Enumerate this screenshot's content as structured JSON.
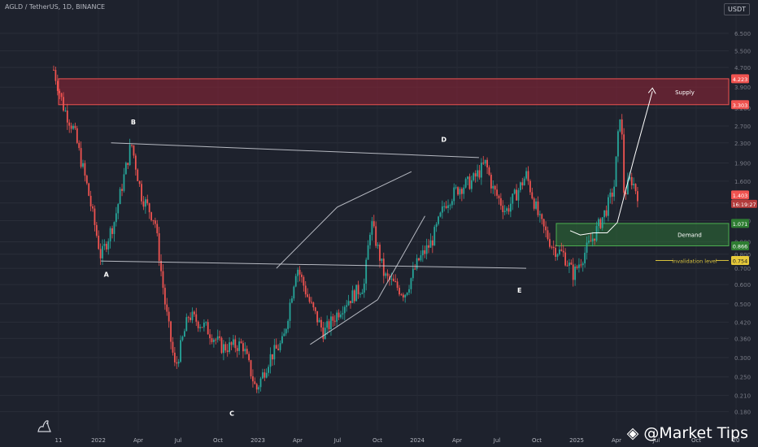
{
  "header": {
    "title": "AGLD / TetherUS, 1D, BINANCE",
    "currency": "USDT"
  },
  "watermark": "@Market Tips",
  "colors": {
    "background": "#1e222d",
    "up": "#26a69a",
    "down": "#ef5350",
    "supply_zone": "#8b2535",
    "demand_zone": "#2b6b35",
    "invalidation": "#d8c23c",
    "lines": "#d1d4dc"
  },
  "chart_data": {
    "type": "candlestick",
    "y_scale": "log",
    "ylim": [
      0.15,
      8.0
    ],
    "y_ticks": [
      6.5,
      5.5,
      4.7,
      3.9,
      3.2,
      2.7,
      2.3,
      1.9,
      1.6,
      1.3,
      1.1,
      0.9,
      0.8,
      0.7,
      0.6,
      0.5,
      0.42,
      0.36,
      0.3,
      0.25,
      0.21,
      0.18
    ],
    "y_tick_labels": [
      "6.500",
      "5.500",
      "4.700",
      "3.900",
      "3.200",
      "2.700",
      "2.300",
      "1.900",
      "1.600",
      "1.300",
      "1.100",
      "0.900",
      "0.800",
      "0.700",
      "0.600",
      "0.500",
      "0.420",
      "0.360",
      "0.300",
      "0.250",
      "0.210",
      "0.180"
    ],
    "x_ticks": [
      "11",
      "2022",
      "Apr",
      "Jul",
      "Oct",
      "2023",
      "Apr",
      "Jul",
      "Oct",
      "2024",
      "Apr",
      "Jul",
      "Oct",
      "2025",
      "Apr",
      "Jul",
      "Oct",
      "20"
    ],
    "price_path": [
      [
        0.0,
        4.6
      ],
      [
        0.015,
        3.2
      ],
      [
        0.03,
        2.6
      ],
      [
        0.05,
        1.5
      ],
      [
        0.07,
        0.78
      ],
      [
        0.09,
        1.1
      ],
      [
        0.115,
        2.3
      ],
      [
        0.13,
        1.4
      ],
      [
        0.15,
        1.1
      ],
      [
        0.165,
        0.5
      ],
      [
        0.18,
        0.27
      ],
      [
        0.2,
        0.45
      ],
      [
        0.225,
        0.4
      ],
      [
        0.25,
        0.33
      ],
      [
        0.28,
        0.34
      ],
      [
        0.3,
        0.22
      ],
      [
        0.32,
        0.3
      ],
      [
        0.34,
        0.35
      ],
      [
        0.36,
        0.72
      ],
      [
        0.38,
        0.5
      ],
      [
        0.4,
        0.38
      ],
      [
        0.43,
        0.5
      ],
      [
        0.46,
        0.6
      ],
      [
        0.47,
        1.1
      ],
      [
        0.49,
        0.65
      ],
      [
        0.52,
        0.55
      ],
      [
        0.54,
        0.75
      ],
      [
        0.56,
        0.9
      ],
      [
        0.58,
        1.3
      ],
      [
        0.6,
        1.5
      ],
      [
        0.62,
        1.6
      ],
      [
        0.64,
        1.9
      ],
      [
        0.65,
        1.5
      ],
      [
        0.67,
        1.2
      ],
      [
        0.69,
        1.5
      ],
      [
        0.7,
        1.7
      ],
      [
        0.72,
        1.1
      ],
      [
        0.74,
        0.85
      ],
      [
        0.755,
        0.8
      ],
      [
        0.77,
        0.66
      ],
      [
        0.78,
        0.75
      ],
      [
        0.8,
        0.95
      ],
      [
        0.82,
        1.25
      ],
      [
        0.83,
        1.5
      ],
      [
        0.84,
        3.3
      ],
      [
        0.845,
        1.4
      ],
      [
        0.855,
        1.65
      ],
      [
        0.865,
        1.42
      ]
    ],
    "supply_zone": {
      "low": 3.303,
      "high": 4.223,
      "label": "Supply"
    },
    "demand_zone": {
      "low": 0.866,
      "high": 1.071,
      "label": "Demand"
    },
    "invalidation": {
      "value": 0.754,
      "label": "invalidation level"
    },
    "price_labels": [
      {
        "value": 4.223,
        "label": "4.223",
        "color": "#ef5350"
      },
      {
        "value": 3.303,
        "label": "3.303",
        "color": "#ef5350"
      },
      {
        "value": 1.403,
        "label": "1.403",
        "color": "#ef5350"
      },
      {
        "value": 1.071,
        "label": "1.071",
        "color": "#2e7d32"
      },
      {
        "value": 0.866,
        "label": "0.866",
        "color": "#2e7d32"
      },
      {
        "value": 0.754,
        "label": "0.754",
        "color": "#e6c93a"
      }
    ],
    "countdown": "16:19:27",
    "wave_points": [
      {
        "label": "A",
        "value": 0.72
      },
      {
        "label": "B",
        "value": 2.5
      },
      {
        "label": "C",
        "value": 0.19
      },
      {
        "label": "D",
        "value": 2.15
      },
      {
        "label": "E",
        "value": 0.62
      }
    ]
  }
}
